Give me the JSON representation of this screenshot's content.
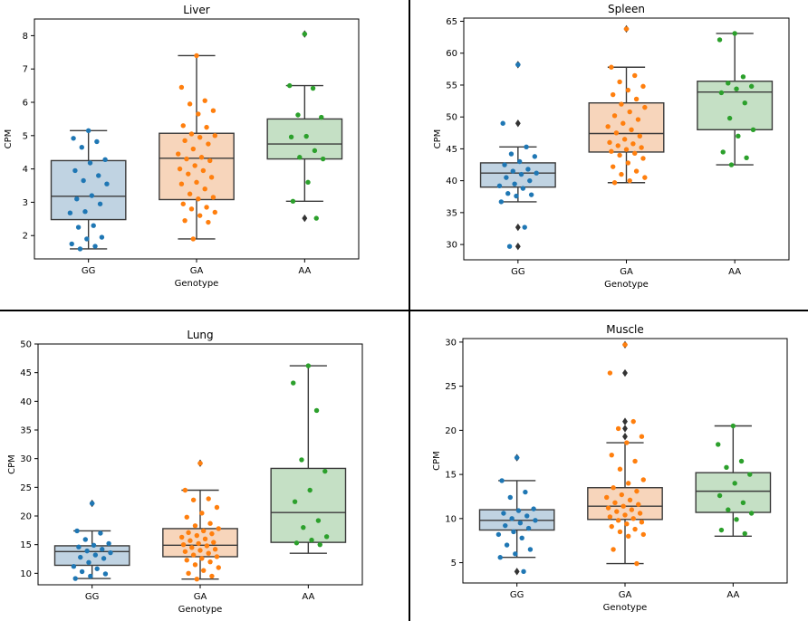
{
  "colors": {
    "GG": {
      "fill": "#c0d3e2",
      "point": "#1f77b4"
    },
    "GA": {
      "fill": "#f7d5bb",
      "point": "#ff7f0e"
    },
    "AA": {
      "fill": "#c5e0c5",
      "point": "#2ca02c"
    },
    "line": "#3a3a3a",
    "outlier": "#333333"
  },
  "chart_data": [
    {
      "type": "box",
      "title": "Liver",
      "xlabel": "Genotype",
      "ylabel": "CPM",
      "categories": [
        "GG",
        "GA",
        "AA"
      ],
      "ylim": [
        1.3,
        8.5
      ],
      "yticks": [
        2,
        3,
        4,
        5,
        6,
        7,
        8
      ],
      "boxes": [
        {
          "category": "GG",
          "whisker_low": 1.6,
          "q1": 2.48,
          "median": 3.18,
          "q3": 4.25,
          "whisker_high": 5.15,
          "outliers": []
        },
        {
          "category": "GA",
          "whisker_low": 1.9,
          "q1": 3.08,
          "median": 4.32,
          "q3": 5.07,
          "whisker_high": 7.4,
          "outliers": []
        },
        {
          "category": "AA",
          "whisker_low": 3.03,
          "q1": 4.3,
          "median": 4.75,
          "q3": 5.5,
          "whisker_high": 6.5,
          "outliers": [
            8.05,
            2.52
          ]
        }
      ],
      "points": {
        "GG": [
          5.15,
          4.92,
          4.82,
          4.65,
          4.28,
          4.18,
          3.95,
          3.8,
          3.65,
          3.55,
          3.2,
          3.1,
          2.95,
          2.72,
          2.68,
          2.3,
          2.25,
          1.95,
          1.9,
          1.75,
          1.68,
          1.6
        ],
        "GA": [
          7.4,
          6.45,
          6.05,
          5.95,
          5.75,
          5.65,
          5.3,
          5.25,
          5.05,
          5.0,
          4.95,
          4.85,
          4.75,
          4.6,
          4.45,
          4.35,
          4.3,
          4.25,
          4.1,
          4.0,
          3.95,
          3.85,
          3.75,
          3.6,
          3.55,
          3.4,
          3.25,
          3.15,
          3.1,
          2.95,
          2.85,
          2.8,
          2.7,
          2.6,
          2.45,
          2.4,
          1.9
        ],
        "AA": [
          8.05,
          6.5,
          6.42,
          5.62,
          5.55,
          4.98,
          4.96,
          4.55,
          4.35,
          4.3,
          3.6,
          3.03,
          2.52
        ]
      }
    },
    {
      "type": "box",
      "title": "Spleen",
      "xlabel": "Genotype",
      "ylabel": "CPM",
      "categories": [
        "GG",
        "GA",
        "AA"
      ],
      "ylim": [
        27.6,
        65.5
      ],
      "yticks": [
        30,
        35,
        40,
        45,
        50,
        55,
        60,
        65
      ],
      "boxes": [
        {
          "category": "GG",
          "whisker_low": 36.7,
          "q1": 39.0,
          "median": 41.2,
          "q3": 42.8,
          "whisker_high": 45.3,
          "outliers": [
            58.2,
            49.0,
            32.7,
            29.7
          ]
        },
        {
          "category": "GA",
          "whisker_low": 39.7,
          "q1": 44.5,
          "median": 47.4,
          "q3": 52.2,
          "whisker_high": 57.8,
          "outliers": [
            63.8
          ]
        },
        {
          "category": "AA",
          "whisker_low": 42.5,
          "q1": 48.0,
          "median": 53.9,
          "q3": 55.6,
          "whisker_high": 63.1,
          "outliers": []
        }
      ],
      "points": {
        "GG": [
          58.2,
          49.0,
          45.3,
          44.2,
          43.8,
          43.0,
          42.5,
          41.8,
          41.5,
          41.2,
          41.0,
          40.5,
          40.0,
          39.5,
          39.2,
          38.8,
          38.0,
          37.8,
          37.6,
          36.7,
          32.7,
          29.7
        ],
        "GA": [
          63.8,
          57.8,
          56.5,
          55.5,
          54.8,
          54.2,
          53.5,
          52.8,
          52.0,
          51.5,
          50.8,
          50.2,
          49.6,
          49.0,
          48.5,
          48.0,
          47.5,
          47.0,
          46.5,
          46.0,
          45.8,
          45.5,
          45.2,
          44.9,
          44.6,
          44.3,
          44.0,
          43.5,
          42.8,
          42.2,
          41.5,
          41.0,
          40.5,
          40.0,
          39.7
        ],
        "AA": [
          63.1,
          62.1,
          56.3,
          55.3,
          54.8,
          54.4,
          53.8,
          52.2,
          49.8,
          48.0,
          47.0,
          44.5,
          43.6,
          42.5
        ]
      }
    },
    {
      "type": "box",
      "title": "Lung",
      "xlabel": "Genotype",
      "ylabel": "CPM",
      "categories": [
        "GG",
        "GA",
        "AA"
      ],
      "ylim": [
        8.0,
        50.0
      ],
      "yticks": [
        10,
        15,
        20,
        25,
        30,
        35,
        40,
        45,
        50
      ],
      "boxes": [
        {
          "category": "GG",
          "whisker_low": 9.1,
          "q1": 11.4,
          "median": 13.8,
          "q3": 14.8,
          "whisker_high": 17.4,
          "outliers": [
            22.2
          ]
        },
        {
          "category": "GA",
          "whisker_low": 9.0,
          "q1": 12.9,
          "median": 14.9,
          "q3": 17.8,
          "whisker_high": 24.5,
          "outliers": [
            29.2
          ]
        },
        {
          "category": "AA",
          "whisker_low": 13.5,
          "q1": 15.4,
          "median": 20.6,
          "q3": 28.3,
          "whisker_high": 46.2,
          "outliers": []
        }
      ],
      "points": {
        "GG": [
          22.2,
          17.4,
          17.0,
          15.9,
          15.2,
          14.9,
          14.6,
          14.2,
          13.9,
          13.6,
          13.2,
          12.8,
          12.6,
          11.9,
          11.2,
          10.8,
          10.3,
          9.9,
          9.5,
          9.1
        ],
        "GA": [
          29.2,
          24.5,
          23.0,
          22.8,
          21.5,
          20.5,
          19.8,
          18.7,
          18.3,
          17.8,
          17.4,
          17.1,
          16.9,
          16.6,
          16.3,
          16.0,
          15.7,
          15.4,
          15.2,
          15.0,
          14.8,
          14.5,
          14.2,
          14.0,
          13.8,
          13.5,
          13.2,
          12.9,
          12.6,
          12.3,
          12.0,
          11.5,
          11.0,
          10.5,
          10.0,
          9.5,
          9.0
        ],
        "AA": [
          46.2,
          43.2,
          38.4,
          29.8,
          27.8,
          24.5,
          22.5,
          19.2,
          18.0,
          16.4,
          15.8,
          15.3,
          15.0
        ]
      }
    },
    {
      "type": "box",
      "title": "Muscle",
      "xlabel": "Genotype",
      "ylabel": "CPM",
      "categories": [
        "GG",
        "GA",
        "AA"
      ],
      "ylim": [
        2.7,
        30.4
      ],
      "yticks": [
        5,
        10,
        15,
        20,
        25,
        30
      ],
      "boxes": [
        {
          "category": "GG",
          "whisker_low": 5.6,
          "q1": 8.7,
          "median": 9.8,
          "q3": 11.0,
          "whisker_high": 14.3,
          "outliers": [
            16.9,
            4.0
          ]
        },
        {
          "category": "GA",
          "whisker_low": 4.9,
          "q1": 9.9,
          "median": 11.4,
          "q3": 13.5,
          "whisker_high": 18.6,
          "outliers": [
            29.7,
            26.5,
            21.0,
            20.2,
            19.3
          ]
        },
        {
          "category": "AA",
          "whisker_low": 8.0,
          "q1": 10.7,
          "median": 13.1,
          "q3": 15.2,
          "whisker_high": 20.5,
          "outliers": []
        }
      ],
      "points": {
        "GG": [
          16.9,
          14.3,
          13.0,
          12.4,
          11.1,
          10.9,
          10.6,
          10.3,
          10.0,
          9.8,
          9.5,
          9.2,
          8.9,
          8.5,
          8.2,
          7.8,
          7.0,
          6.5,
          6.0,
          5.6,
          4.0
        ],
        "GA": [
          29.7,
          26.5,
          21.0,
          20.2,
          19.3,
          18.6,
          17.2,
          16.5,
          15.6,
          14.4,
          14.0,
          13.5,
          13.1,
          12.7,
          12.4,
          12.1,
          11.8,
          11.6,
          11.4,
          11.2,
          11.0,
          10.8,
          10.6,
          10.4,
          10.2,
          10.0,
          9.8,
          9.6,
          9.4,
          9.1,
          8.8,
          8.5,
          8.2,
          8.0,
          6.5,
          4.9
        ],
        "AA": [
          20.5,
          18.4,
          16.5,
          15.8,
          15.0,
          14.0,
          12.6,
          11.8,
          11.0,
          10.6,
          9.9,
          8.7,
          8.3
        ]
      }
    }
  ]
}
